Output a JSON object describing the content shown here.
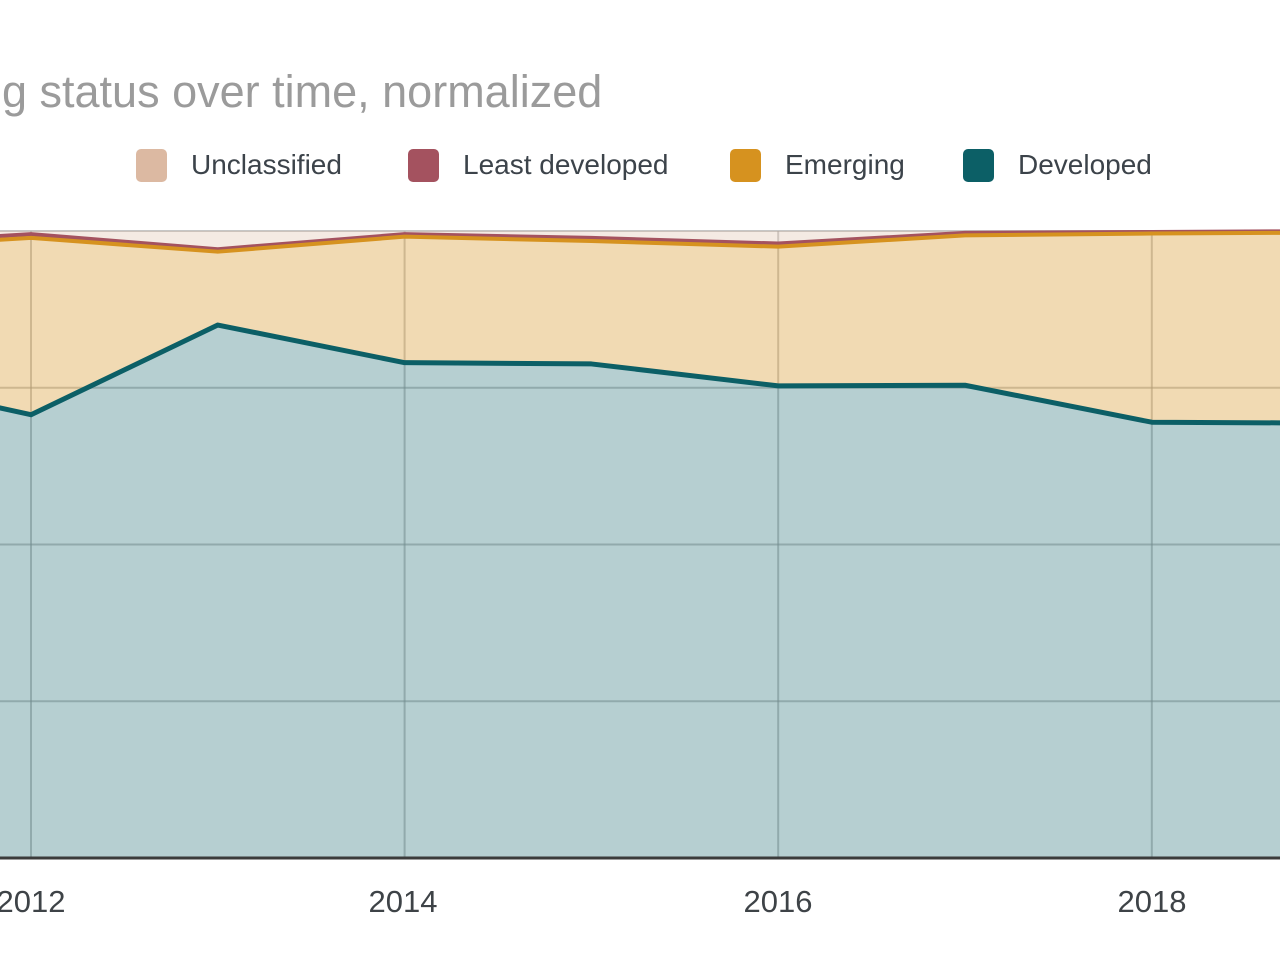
{
  "page": {
    "background": "#ffffff"
  },
  "header": {
    "title": "g status over time, normalized",
    "title_color": "#9b9b9b"
  },
  "legend": {
    "items": [
      {
        "label": "Unclassified",
        "color": "#dcb9a2"
      },
      {
        "label": "Least developed",
        "color": "#a4525f"
      },
      {
        "label": "Emerging",
        "color": "#d6921f"
      },
      {
        "label": "Developed",
        "color": "#0c5f66"
      }
    ]
  },
  "chart_data": {
    "type": "area",
    "stacked": true,
    "normalized": true,
    "title": "g status over time, normalized",
    "xlabel": "",
    "ylabel": "",
    "x": [
      2011.83,
      2012,
      2013,
      2014,
      2015,
      2016,
      2017,
      2018,
      2018.69
    ],
    "x_ticks": [
      2012,
      2014,
      2016,
      2018
    ],
    "x_tick_labels": [
      "2012",
      "2014",
      "2016",
      "2018"
    ],
    "ylim": [
      0,
      100
    ],
    "y_gridlines": [
      25,
      50,
      75,
      100
    ],
    "grid_on": true,
    "legend_position": "top",
    "stack_order_bottom_to_top": [
      "Developed",
      "Emerging",
      "Least developed",
      "Unclassified"
    ],
    "series": [
      {
        "name": "Unclassified",
        "color": "#dcb9a2",
        "line_width": 0,
        "fill_opacity": 0.3,
        "values": [
          0.8,
          0.5,
          2.9,
          0.5,
          1.1,
          2.0,
          0.3,
          0.15,
          0.05
        ]
      },
      {
        "name": "Least developed",
        "color": "#a4525f",
        "line_width": 4,
        "fill_opacity": 0.3,
        "values": [
          0.6,
          0.6,
          0.4,
          0.4,
          0.5,
          0.5,
          0.4,
          0.25,
          0.25
        ]
      },
      {
        "name": "Emerging",
        "color": "#d6921f",
        "line_width": 4,
        "fill_opacity": 0.34,
        "values": [
          26.8,
          28.2,
          11.7,
          20.1,
          19.6,
          22.2,
          23.9,
          30.1,
          30.3
        ]
      },
      {
        "name": "Developed",
        "color": "#0c5f66",
        "line_width": 5,
        "fill_opacity": 0.3,
        "values": [
          71.8,
          70.7,
          85.0,
          79.0,
          78.8,
          75.3,
          75.4,
          69.5,
          69.4
        ]
      }
    ],
    "colors": {
      "grid": "#9e9e9e",
      "top_line": "#c6c6c6",
      "axis": "#3b3b3b"
    }
  }
}
